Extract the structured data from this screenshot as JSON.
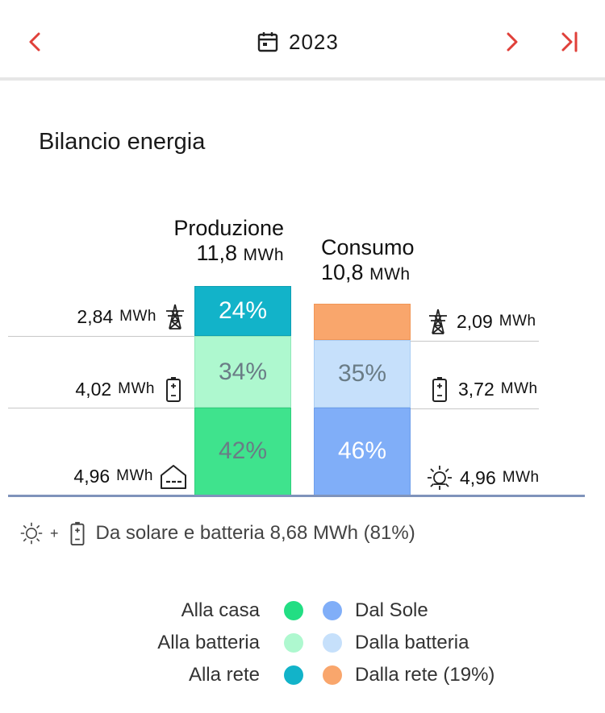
{
  "header": {
    "year": "2023",
    "prev_icon": "chevron-left-icon",
    "next_icon": "chevron-right-icon",
    "last_icon": "skip-to-end-icon",
    "calendar_icon": "calendar-icon"
  },
  "title": "Bilancio energia",
  "production": {
    "label": "Produzione",
    "total_num": "11,8",
    "total_unit": "MWh",
    "segments": [
      {
        "name": "alla-rete",
        "percent": "24%",
        "fraction": 0.24,
        "color": "#12b3c9",
        "text_color": "#ffffff"
      },
      {
        "name": "alla-batteria",
        "percent": "34%",
        "fraction": 0.34,
        "color": "#aef8cf",
        "text_color": "#6a7c86"
      },
      {
        "name": "alla-casa",
        "percent": "42%",
        "fraction": 0.42,
        "color": "#3fe38d",
        "text_color": "#6a7c86"
      }
    ],
    "values": [
      {
        "num": "2,84",
        "unit": "MWh",
        "icon": "power-tower-icon"
      },
      {
        "num": "4,02",
        "unit": "MWh",
        "icon": "battery-icon"
      },
      {
        "num": "4,96",
        "unit": "MWh",
        "icon": "house-icon"
      }
    ]
  },
  "consumption": {
    "label": "Consumo",
    "total_num": "10,8",
    "total_unit": "MWh",
    "segments": [
      {
        "name": "dalla-rete",
        "percent": "",
        "fraction": 0.19,
        "color": "#f9a66c",
        "text_color": "#ffffff"
      },
      {
        "name": "dalla-batteria",
        "percent": "35%",
        "fraction": 0.35,
        "color": "#c6e0fb",
        "text_color": "#6a7c86"
      },
      {
        "name": "dal-sole",
        "percent": "46%",
        "fraction": 0.46,
        "color": "#80aef8",
        "text_color": "#ffffff"
      }
    ],
    "values": [
      {
        "num": "2,09",
        "unit": "MWh",
        "icon": "power-tower-icon"
      },
      {
        "num": "3,72",
        "unit": "MWh",
        "icon": "battery-icon"
      },
      {
        "num": "4,96",
        "unit": "MWh",
        "icon": "sun-icon"
      }
    ]
  },
  "summary": {
    "plus": "+",
    "text": "Da solare e batteria 8,68 MWh (81%)"
  },
  "legend": {
    "left": [
      {
        "label": "Alla casa",
        "color": "#22de83"
      },
      {
        "label": "Alla batteria",
        "color": "#aef8cf"
      },
      {
        "label": "Alla rete",
        "color": "#12b3c9"
      }
    ],
    "right": [
      {
        "label": "Dal Sole",
        "color": "#80aef8"
      },
      {
        "label": "Dalla batteria",
        "color": "#c6e0fb"
      },
      {
        "label": "Dalla rete (19%)",
        "color": "#f9a66c"
      }
    ]
  }
}
